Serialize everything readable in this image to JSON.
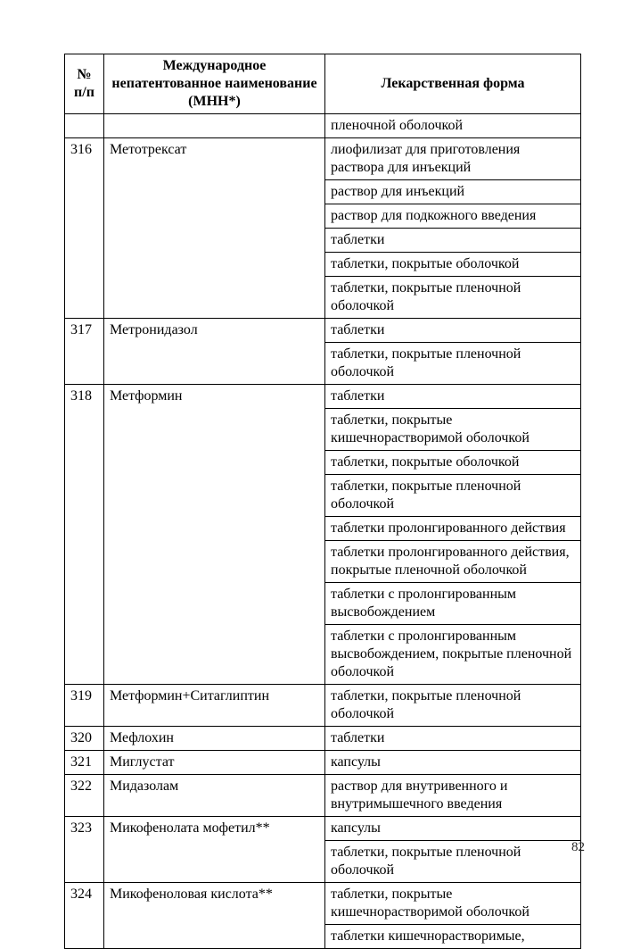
{
  "page_number": "82",
  "columns": {
    "num": "№ п/п",
    "name": "Международное непатентованное наименование (МНН*)",
    "form": "Лекарственная форма"
  },
  "rows": [
    {
      "num": "",
      "name": "",
      "form": "пленочной оболочкой"
    },
    {
      "num": "316",
      "name": "Метотрексат",
      "form": "лиофилизат для приготовления раствора для инъекций"
    },
    {
      "num": "",
      "name": "",
      "form": "раствор для инъекций"
    },
    {
      "num": "",
      "name": "",
      "form": "раствор для подкожного введения"
    },
    {
      "num": "",
      "name": "",
      "form": "таблетки"
    },
    {
      "num": "",
      "name": "",
      "form": "таблетки, покрытые оболочкой"
    },
    {
      "num": "",
      "name": "",
      "form": "таблетки, покрытые пленочной оболочкой"
    },
    {
      "num": "317",
      "name": "Метронидазол",
      "form": "таблетки"
    },
    {
      "num": "",
      "name": "",
      "form": "таблетки, покрытые пленочной оболочкой"
    },
    {
      "num": "318",
      "name": "Метформин",
      "form": "таблетки"
    },
    {
      "num": "",
      "name": "",
      "form": "таблетки, покрытые кишечнорастворимой оболочкой"
    },
    {
      "num": "",
      "name": "",
      "form": "таблетки, покрытые оболочкой"
    },
    {
      "num": "",
      "name": "",
      "form": "таблетки, покрытые пленочной оболочкой"
    },
    {
      "num": "",
      "name": "",
      "form": "таблетки пролонгированного действия"
    },
    {
      "num": "",
      "name": "",
      "form": "таблетки пролонгированного действия, покрытые пленочной оболочкой"
    },
    {
      "num": "",
      "name": "",
      "form": "таблетки с пролонгированным высвобождением"
    },
    {
      "num": "",
      "name": "",
      "form": "таблетки с пролонгированным высвобождением, покрытые пленочной оболочкой"
    },
    {
      "num": "319",
      "name": "Метформин+Ситаглиптин",
      "form": "таблетки, покрытые пленочной оболочкой"
    },
    {
      "num": "320",
      "name": "Мефлохин",
      "form": "таблетки"
    },
    {
      "num": "321",
      "name": "Миглустат",
      "form": "капсулы"
    },
    {
      "num": "322",
      "name": "Мидазолам",
      "form": "раствор для внутривенного и внутримышечного введения"
    },
    {
      "num": "323",
      "name": "Микофенолата мофетил**",
      "form": "капсулы"
    },
    {
      "num": "",
      "name": "",
      "form": "таблетки, покрытые пленочной оболочкой"
    },
    {
      "num": "324",
      "name": "Микофеноловая кислота**",
      "form": "таблетки, покрытые кишечнорастворимой оболочкой"
    },
    {
      "num": "",
      "name": "",
      "form": "таблетки кишечнорастворимые,"
    }
  ],
  "groups": [
    {
      "start": 0,
      "span": 1
    },
    {
      "start": 1,
      "span": 6
    },
    {
      "start": 7,
      "span": 2
    },
    {
      "start": 9,
      "span": 8
    },
    {
      "start": 17,
      "span": 1
    },
    {
      "start": 18,
      "span": 1
    },
    {
      "start": 19,
      "span": 1
    },
    {
      "start": 20,
      "span": 1
    },
    {
      "start": 21,
      "span": 2
    },
    {
      "start": 23,
      "span": 2
    }
  ]
}
